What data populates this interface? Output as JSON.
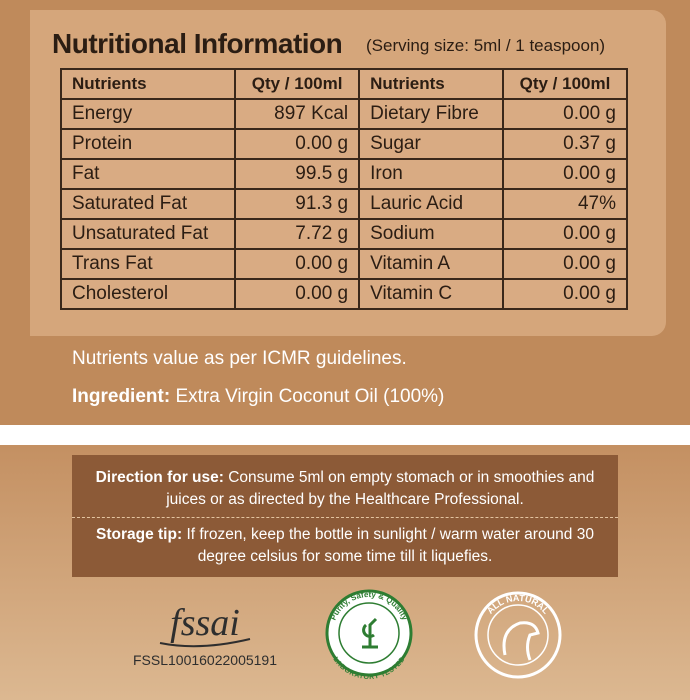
{
  "header": {
    "title": "Nutritional Information",
    "serving": "(Serving size: 5ml / 1 teaspoon)"
  },
  "table": {
    "header": [
      "Nutrients",
      "Qty / 100ml",
      "Nutrients",
      "Qty / 100ml"
    ],
    "rows": [
      [
        "Energy",
        "897 Kcal",
        "Dietary Fibre",
        "0.00 g"
      ],
      [
        "Protein",
        "0.00 g",
        "Sugar",
        "0.37 g"
      ],
      [
        "Fat",
        "99.5 g",
        "Iron",
        "0.00 g"
      ],
      [
        "Saturated Fat",
        "91.3 g",
        "Lauric Acid",
        "47%"
      ],
      [
        "Unsaturated Fat",
        "7.72 g",
        "Sodium",
        "0.00 g"
      ],
      [
        "Trans Fat",
        "0.00 g",
        "Vitamin A",
        "0.00 g"
      ],
      [
        "Cholesterol",
        "0.00 g",
        "Vitamin C",
        "0.00 g"
      ]
    ]
  },
  "note": "Nutrients value as per ICMR guidelines.",
  "ingredient": {
    "label": "Ingredient:",
    "text": "Extra Virgin Coconut Oil (100%)"
  },
  "directions": {
    "label": "Direction for use:",
    "text": "Consume 5ml on empty stomach or in smoothies and juices or as directed by the Healthcare Professional."
  },
  "storage": {
    "label": "Storage tip:",
    "text": "If frozen, keep the bottle in sunlight / warm water around 30 degree celsius for some time till it liquefies."
  },
  "logos": {
    "fssai": "fssai",
    "license": "FSSL10016022005191",
    "lab_badge_top": "Purity, Safety & Quality",
    "lab_badge_bottom": "LABORATORY TESTED",
    "natural_badge": "ALL NATURAL"
  }
}
